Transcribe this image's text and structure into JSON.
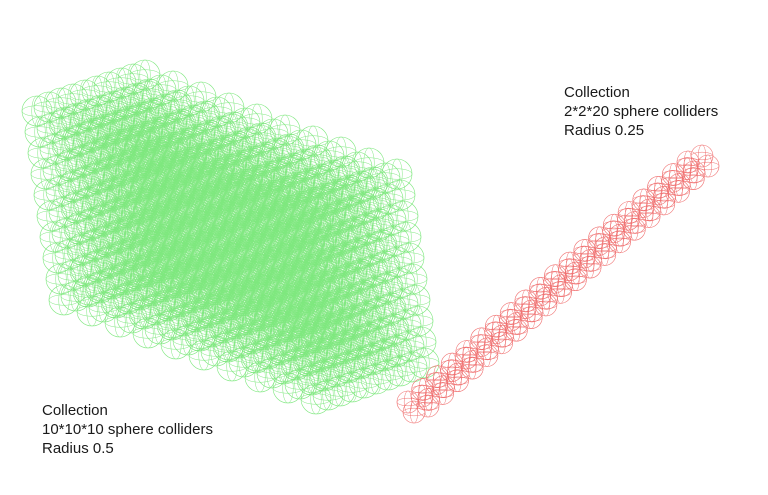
{
  "collections": [
    {
      "id": "green",
      "lines": [
        "Collection",
        "10*10*10 sphere colliders",
        "Radius 0.5"
      ],
      "grid": [
        10,
        10,
        10
      ],
      "radius": 0.5,
      "color": "#7fe87f"
    },
    {
      "id": "red",
      "lines": [
        "Collection",
        "2*2*20 sphere colliders",
        "Radius 0.25"
      ],
      "grid": [
        2,
        2,
        20
      ],
      "radius": 0.25,
      "color": "#f07070"
    }
  ]
}
